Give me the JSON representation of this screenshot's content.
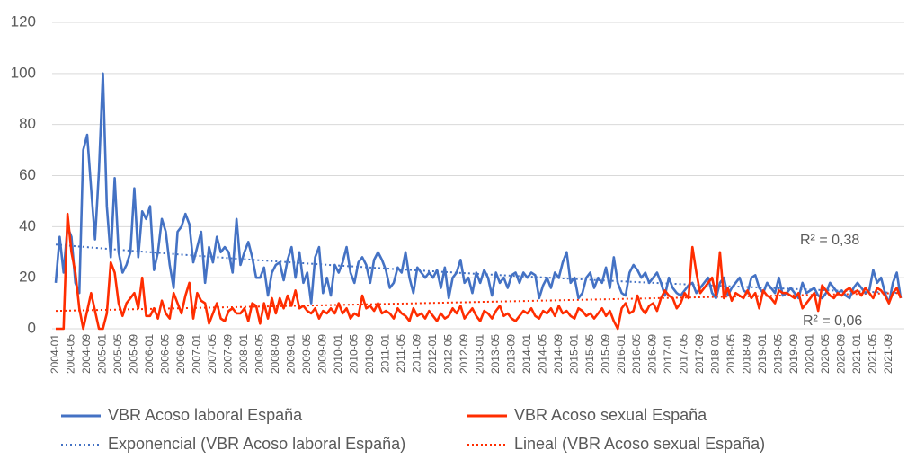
{
  "chart_data": {
    "type": "line",
    "categories": [
      "2004-01",
      null,
      null,
      null,
      "2004-05",
      null,
      null,
      null,
      "2004-09",
      null,
      null,
      null,
      "2005-01",
      null,
      null,
      null,
      "2005-05",
      null,
      null,
      null,
      "2005-09",
      null,
      null,
      null,
      "2006-01",
      null,
      null,
      null,
      "2006-05",
      null,
      null,
      null,
      "2006-09",
      null,
      null,
      null,
      "2007-01",
      null,
      null,
      null,
      "2007-05",
      null,
      null,
      null,
      "2007-09",
      null,
      null,
      null,
      "2008-01",
      null,
      null,
      null,
      "2008-05",
      null,
      null,
      null,
      "2008-09",
      null,
      null,
      null,
      "2009-01",
      null,
      null,
      null,
      "2009-05",
      null,
      null,
      null,
      "2009-09",
      null,
      null,
      null,
      "2010-01",
      null,
      null,
      null,
      "2010-05",
      null,
      null,
      null,
      "2010-09",
      null,
      null,
      null,
      "2011-01",
      null,
      null,
      null,
      "2011-05",
      null,
      null,
      null,
      "2011-09",
      null,
      null,
      null,
      "2012-01",
      null,
      null,
      null,
      "2012-05",
      null,
      null,
      null,
      "2012-09",
      null,
      null,
      null,
      "2013-01",
      null,
      null,
      null,
      "2013-05",
      null,
      null,
      null,
      "2013-09",
      null,
      null,
      null,
      "2014-01",
      null,
      null,
      null,
      "2014-05",
      null,
      null,
      null,
      "2014-09",
      null,
      null,
      null,
      "2015-01",
      null,
      null,
      null,
      "2015-05",
      null,
      null,
      null,
      "2015-09",
      null,
      null,
      null,
      "2016-01",
      null,
      null,
      null,
      "2016-05",
      null,
      null,
      null,
      "2016-09",
      null,
      null,
      null,
      "2017-01",
      null,
      null,
      null,
      "2017-05",
      null,
      null,
      null,
      "2017-09",
      null,
      null,
      null,
      "2018-01",
      null,
      null,
      null,
      "2018-05",
      null,
      null,
      null,
      "2018-09",
      null,
      null,
      null,
      "2019-01",
      null,
      null,
      null,
      "2019-05",
      null,
      null,
      null,
      "2019-09",
      null,
      null,
      null,
      "2020-01",
      null,
      null,
      null,
      "2020-05",
      null,
      null,
      null,
      "2020-09",
      null,
      null,
      null,
      "2021-01",
      null,
      null,
      null,
      "2021-05",
      null,
      null,
      null,
      "2021-09",
      null,
      null,
      null
    ],
    "series": [
      {
        "name": "VBR Acoso laboral España",
        "color": "#4472c4",
        "values": [
          18,
          36,
          22,
          40,
          36,
          18,
          14,
          70,
          76,
          55,
          35,
          62,
          100,
          48,
          28,
          59,
          30,
          22,
          25,
          30,
          55,
          28,
          46,
          43,
          48,
          23,
          30,
          43,
          38,
          25,
          16,
          38,
          40,
          45,
          41,
          26,
          32,
          38,
          18,
          32,
          26,
          36,
          30,
          32,
          30,
          22,
          43,
          25,
          30,
          34,
          28,
          20,
          20,
          24,
          13,
          22,
          25,
          26,
          19,
          27,
          32,
          20,
          30,
          18,
          22,
          10,
          28,
          32,
          14,
          20,
          13,
          25,
          22,
          26,
          32,
          22,
          18,
          26,
          28,
          25,
          18,
          27,
          30,
          27,
          23,
          16,
          18,
          24,
          22,
          30,
          20,
          14,
          24,
          22,
          20,
          22,
          20,
          23,
          16,
          24,
          12,
          20,
          22,
          27,
          18,
          20,
          14,
          22,
          18,
          23,
          20,
          13,
          22,
          18,
          20,
          16,
          21,
          22,
          18,
          22,
          20,
          22,
          21,
          12,
          17,
          20,
          16,
          22,
          20,
          26,
          30,
          18,
          20,
          12,
          14,
          20,
          22,
          16,
          20,
          18,
          24,
          16,
          28,
          18,
          14,
          13,
          22,
          25,
          23,
          20,
          22,
          18,
          20,
          22,
          18,
          13,
          20,
          16,
          14,
          13,
          15,
          17,
          18,
          14,
          16,
          18,
          20,
          14,
          12,
          18,
          20,
          13,
          16,
          18,
          20,
          15,
          14,
          20,
          21,
          16,
          14,
          18,
          16,
          14,
          20,
          13,
          14,
          16,
          14,
          12,
          18,
          14,
          15,
          16,
          13,
          12,
          14,
          18,
          16,
          14,
          15,
          13,
          12,
          16,
          18,
          16,
          14,
          15,
          23,
          18,
          20,
          14,
          10,
          18,
          22,
          12
        ]
      },
      {
        "name": "VBR Acoso sexual España",
        "color": "#ff2d00",
        "values": [
          0,
          0,
          0,
          45,
          30,
          22,
          8,
          0,
          7,
          14,
          7,
          0,
          0,
          6,
          26,
          22,
          10,
          5,
          10,
          12,
          14,
          8,
          20,
          5,
          5,
          8,
          4,
          11,
          6,
          4,
          14,
          10,
          6,
          13,
          18,
          4,
          14,
          11,
          10,
          2,
          6,
          10,
          4,
          3,
          7,
          8,
          6,
          6,
          8,
          3,
          10,
          9,
          2,
          10,
          4,
          12,
          6,
          12,
          8,
          13,
          9,
          15,
          8,
          9,
          7,
          6,
          8,
          4,
          7,
          6,
          8,
          6,
          10,
          6,
          8,
          4,
          6,
          5,
          13,
          8,
          9,
          7,
          10,
          6,
          7,
          6,
          4,
          8,
          6,
          5,
          3,
          8,
          5,
          6,
          4,
          7,
          5,
          3,
          6,
          4,
          5,
          8,
          6,
          9,
          4,
          6,
          8,
          5,
          3,
          7,
          6,
          4,
          7,
          9,
          5,
          6,
          4,
          3,
          5,
          7,
          6,
          8,
          5,
          4,
          7,
          6,
          8,
          5,
          9,
          6,
          7,
          5,
          4,
          8,
          7,
          5,
          6,
          4,
          6,
          8,
          5,
          7,
          3,
          0,
          8,
          10,
          6,
          7,
          13,
          8,
          6,
          9,
          10,
          7,
          12,
          15,
          13,
          12,
          8,
          10,
          14,
          12,
          32,
          22,
          14,
          16,
          18,
          20,
          13,
          30,
          12,
          16,
          11,
          14,
          13,
          12,
          15,
          12,
          14,
          8,
          15,
          13,
          12,
          10,
          15,
          14,
          14,
          13,
          12,
          14,
          8,
          10,
          12,
          14,
          7,
          17,
          15,
          13,
          12,
          14,
          13,
          15,
          16,
          14,
          15,
          13,
          16,
          14,
          12,
          16,
          15,
          13,
          10,
          14,
          16,
          12
        ]
      }
    ],
    "trendlines": [
      {
        "name": "Exponencial (VBR Acoso laboral España)",
        "color": "#4472c4",
        "kind": "exponential",
        "start": 33,
        "end": 14,
        "label": "R² = 0,38"
      },
      {
        "name": "Lineal (VBR Acoso sexual España)",
        "color": "#ff2d00",
        "kind": "linear",
        "start": 7,
        "end": 14,
        "label": "R² = 0,06"
      }
    ],
    "ylim": [
      0,
      120
    ],
    "yticks": [
      0,
      20,
      40,
      60,
      80,
      100,
      120
    ],
    "grid": true
  }
}
